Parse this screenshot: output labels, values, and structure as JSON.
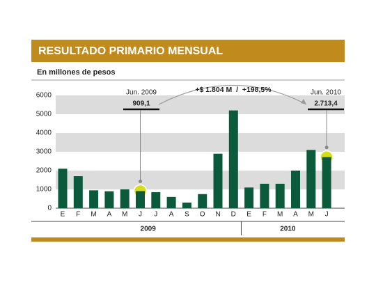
{
  "chart_data": {
    "type": "bar",
    "title": "RESULTADO PRIMARIO MENSUAL",
    "subtitle": "En millones de pesos",
    "groups": [
      {
        "name": "2009",
        "categories": [
          "E",
          "F",
          "M",
          "A",
          "M",
          "J",
          "J",
          "A",
          "S",
          "O",
          "N",
          "D"
        ],
        "values": [
          2100,
          1700,
          950,
          900,
          1000,
          909.1,
          850,
          600,
          300,
          750,
          2900,
          5200
        ],
        "value_labels": [
          null,
          null,
          null,
          null,
          null,
          "909,1",
          null,
          null,
          null,
          null,
          null,
          null
        ]
      },
      {
        "name": "2010",
        "categories": [
          "E",
          "F",
          "M",
          "A",
          "M",
          "J"
        ],
        "values": [
          1100,
          1300,
          1300,
          2000,
          3100,
          2713.4
        ],
        "value_labels": [
          null,
          null,
          null,
          null,
          null,
          "2.713,4"
        ]
      }
    ],
    "annotations": [
      "Jun. 2009",
      "Jun. 2010"
    ],
    "comparison": "+$ 1.804 M  /  +198,5%",
    "color": "#0b5a3c",
    "highlight_color": "#d4dc1c",
    "ylim": [
      0,
      6000
    ],
    "yticks": [
      0,
      1000,
      2000,
      3000,
      4000,
      5000,
      6000
    ],
    "grid": true
  }
}
